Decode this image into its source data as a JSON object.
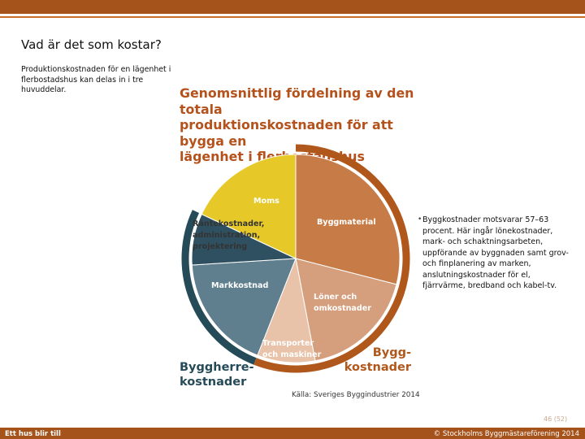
{
  "slide": {
    "title": "Vad är det som kostar?",
    "intro": "Produktionskostnaden för en lägenhet i flerbostadshus kan delas in i tre huvuddelar.",
    "bullet": "Byggkostnader motsvarar 57–63 procent. Här ingår lönekostnader, mark- och schaktningsarbeten, uppförande av byggnaden samt grov- och finplanering av marken, anslutningskostnader för el, fjärrvärme, bredband och kabel-tv.",
    "page_number": "46 (52)"
  },
  "footer": {
    "left": "Ett hus blir till",
    "right": "© Stockholms Byggmästareförening 2014"
  },
  "colors": {
    "band": "#a5521b",
    "title": "#b5521c",
    "byggmaterial": "#c77c47",
    "loner": "#d59e7c",
    "transporter": "#e8c3a9",
    "markkostnad": "#5f7f8f",
    "rantekostnader": "#2f5060",
    "moms": "#e6c929",
    "byggherre_ring": "#264b58",
    "bygg_ring": "#b0581c"
  },
  "chart_data": {
    "type": "pie",
    "title": [
      "Genomsnittlig fördelning av den totala",
      "produktionskostnaden för att bygga en",
      "lägenhet i flerbostadshus"
    ],
    "unit": "percent (approx.)",
    "slices": [
      {
        "key": "byggmaterial",
        "label": [
          "Byggmaterial"
        ],
        "value": 29,
        "group": "bygg"
      },
      {
        "key": "loner",
        "label": [
          "Löner och",
          "omkostnader"
        ],
        "value": 18,
        "group": "bygg"
      },
      {
        "key": "transporter",
        "label": [
          "Transporter",
          "och maskiner"
        ],
        "value": 9,
        "group": "bygg"
      },
      {
        "key": "markkostnad",
        "label": [
          "Markkostnad"
        ],
        "value": 18,
        "group": "byggherre"
      },
      {
        "key": "rantekostnader",
        "label": [
          "Räntekostnader,",
          "administration,",
          "projektering"
        ],
        "value": 8,
        "group": "byggherre"
      },
      {
        "key": "moms",
        "label": [
          "Moms"
        ],
        "value": 18,
        "group": "none"
      }
    ],
    "groups": [
      {
        "key": "byggherre",
        "label": [
          "Byggherre-",
          "kostnader"
        ]
      },
      {
        "key": "bygg",
        "label": [
          "Bygg-",
          "kostnader"
        ]
      }
    ],
    "source": "Källa: Sveriges Byggindustrier 2014"
  }
}
